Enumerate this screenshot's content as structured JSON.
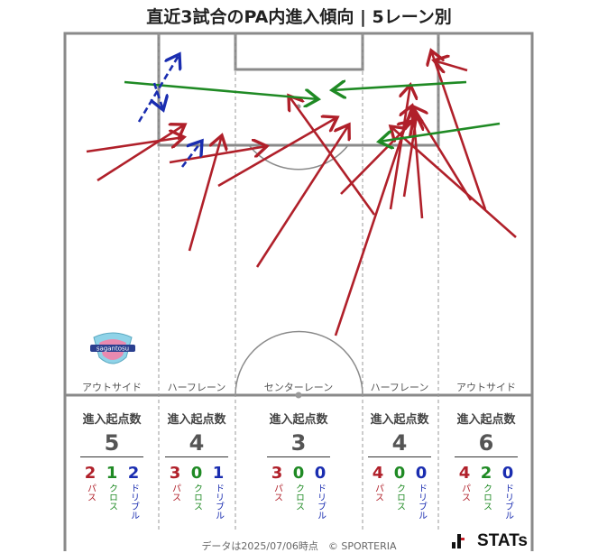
{
  "title": "直近3試合のPA内進入傾向 | 5レーン別",
  "colors": {
    "pass": "#b0202a",
    "cross": "#1f8a24",
    "dribble": "#1a2db0",
    "pitch_line": "#888888"
  },
  "lanes": [
    {
      "name": "アウトサイド",
      "label_head": "進入起点数",
      "total": "5",
      "pass": "2",
      "cross": "1",
      "dribble": "2"
    },
    {
      "name": "ハーフレーン",
      "label_head": "進入起点数",
      "total": "4",
      "pass": "3",
      "cross": "0",
      "dribble": "1"
    },
    {
      "name": "センターレーン",
      "label_head": "進入起点数",
      "total": "3",
      "pass": "3",
      "cross": "0",
      "dribble": "0"
    },
    {
      "name": "ハーフレーン",
      "label_head": "進入起点数",
      "total": "4",
      "pass": "4",
      "cross": "0",
      "dribble": "0"
    },
    {
      "name": "アウトサイド",
      "label_head": "進入起点数",
      "total": "6",
      "pass": "4",
      "cross": "2",
      "dribble": "0"
    }
  ],
  "legend_words": {
    "pass": "パス",
    "cross": "クロス",
    "dribble": "ドリブル"
  },
  "logo_text": "sagantosu",
  "footer": "データは2025/07/06時点　© SPORTERIA",
  "brand": "STATs",
  "chart_data": {
    "type": "scatter",
    "title": "直近3試合のPA内進入傾向 | 5レーン別",
    "categories": [
      "アウトサイド",
      "ハーフレーン",
      "センターレーン",
      "ハーフレーン",
      "アウトサイド"
    ],
    "series": [
      {
        "name": "パス",
        "values": [
          2,
          3,
          3,
          4,
          4
        ]
      },
      {
        "name": "クロス",
        "values": [
          1,
          0,
          0,
          0,
          2
        ]
      },
      {
        "name": "ドリブル",
        "values": [
          2,
          1,
          0,
          0,
          0
        ]
      }
    ],
    "totals": [
      5,
      4,
      3,
      4,
      6
    ],
    "grid": false,
    "arrows": [
      {
        "kind": "pass",
        "from": [
          108,
          200
        ],
        "to": [
          205,
          138
        ]
      },
      {
        "kind": "pass",
        "from": [
          96,
          168
        ],
        "to": [
          204,
          152
        ]
      },
      {
        "kind": "pass",
        "from": [
          188,
          180
        ],
        "to": [
          296,
          162
        ]
      },
      {
        "kind": "pass",
        "from": [
          210,
          278
        ],
        "to": [
          246,
          150
        ]
      },
      {
        "kind": "pass",
        "from": [
          242,
          206
        ],
        "to": [
          374,
          130
        ]
      },
      {
        "kind": "pass",
        "from": [
          285,
          296
        ],
        "to": [
          387,
          138
        ]
      },
      {
        "kind": "pass",
        "from": [
          372,
          372
        ],
        "to": [
          457,
          117
        ]
      },
      {
        "kind": "pass",
        "from": [
          415,
          238
        ],
        "to": [
          320,
          106
        ]
      },
      {
        "kind": "pass",
        "from": [
          378,
          215
        ],
        "to": [
          458,
          134
        ]
      },
      {
        "kind": "pass",
        "from": [
          433,
          232
        ],
        "to": [
          455,
          94
        ]
      },
      {
        "kind": "pass",
        "from": [
          468,
          242
        ],
        "to": [
          458,
          122
        ]
      },
      {
        "kind": "pass",
        "from": [
          572,
          263
        ],
        "to": [
          433,
          140
        ]
      },
      {
        "kind": "pass",
        "from": [
          538,
          232
        ],
        "to": [
          478,
          56
        ]
      },
      {
        "kind": "pass",
        "from": [
          518,
          78
        ],
        "to": [
          481,
          67
        ]
      },
      {
        "kind": "pass",
        "from": [
          522,
          222
        ],
        "to": [
          458,
          118
        ]
      },
      {
        "kind": "pass",
        "from": [
          448,
          218
        ],
        "to": [
          462,
          128
        ]
      },
      {
        "kind": "cross",
        "from": [
          138,
          91
        ],
        "to": [
          353,
          110
        ]
      },
      {
        "kind": "cross",
        "from": [
          517,
          91
        ],
        "to": [
          368,
          100
        ]
      },
      {
        "kind": "cross",
        "from": [
          554,
          137
        ],
        "to": [
          420,
          157
        ]
      },
      {
        "kind": "dribble",
        "from": [
          154,
          135
        ],
        "to": [
          199,
          60
        ]
      },
      {
        "kind": "dribble",
        "from": [
          202,
          185
        ],
        "to": [
          224,
          156
        ]
      },
      {
        "kind": "dribble",
        "from": [
          171,
          92
        ],
        "to": [
          181,
          122
        ]
      }
    ]
  }
}
